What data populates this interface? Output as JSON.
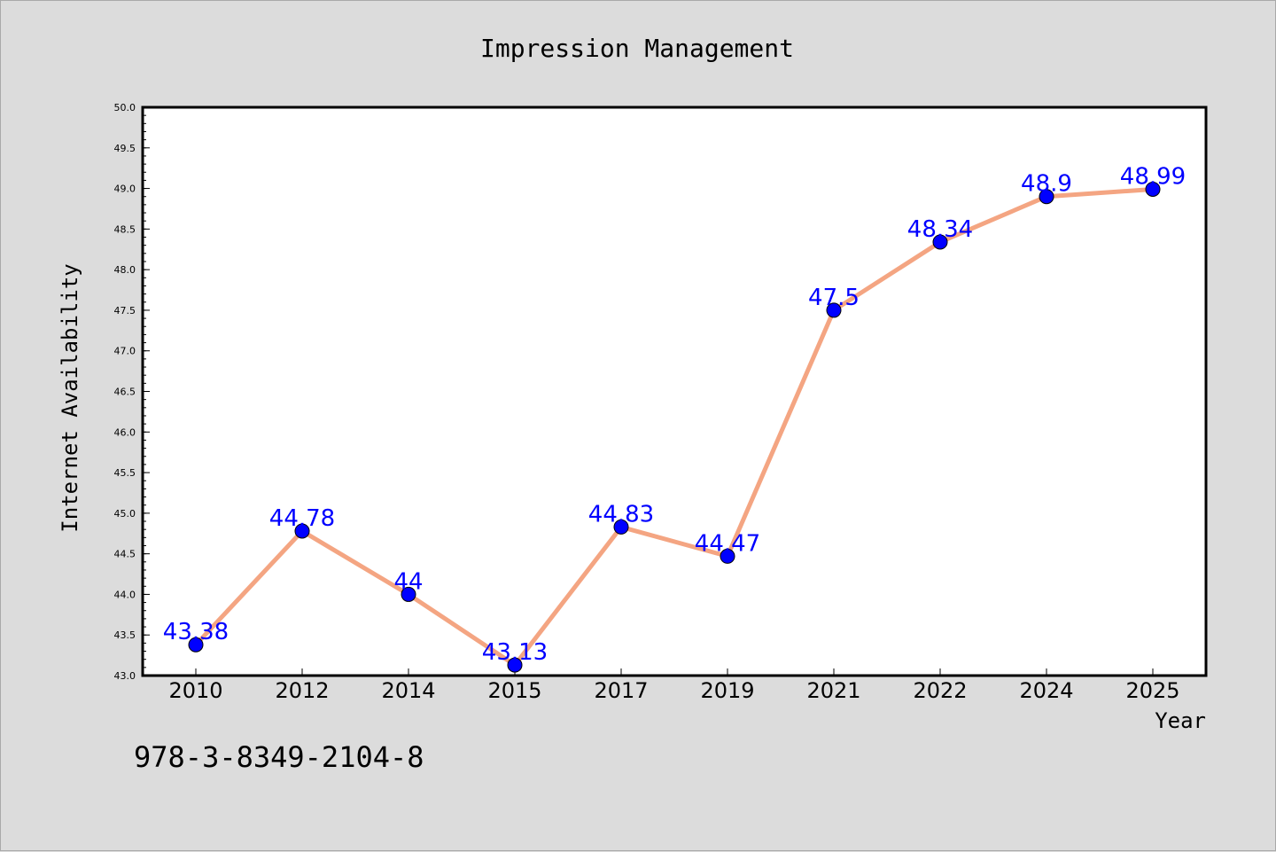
{
  "footer": {
    "isbn": "978-3-8349-2104-8"
  },
  "colors": {
    "background": "#dcdcdc",
    "plot_area": "#ffffff",
    "line": "#f4a582",
    "marker": "#0000ff",
    "data_label": "#0000ff"
  },
  "chart_data": {
    "type": "line",
    "title": "Impression Management",
    "xlabel": "Year",
    "ylabel": "Internet Availability",
    "categories": [
      "2010",
      "2012",
      "2014",
      "2015",
      "2017",
      "2019",
      "2021",
      "2022",
      "2024",
      "2025"
    ],
    "series": [
      {
        "values": [
          43.38,
          44.78,
          44,
          43.13,
          44.83,
          44.47,
          47.5,
          48.34,
          48.9,
          48.99
        ]
      }
    ],
    "data_labels": [
      "43.38",
      "44.78",
      "44",
      "43.13",
      "44.83",
      "44.47",
      "47.5",
      "48.34",
      "48.9",
      "48.99"
    ],
    "ylim": [
      43.0,
      50.0
    ],
    "yticks": [
      "43.0",
      "43.5",
      "44.0",
      "44.5",
      "45.0",
      "45.5",
      "46.0",
      "46.5",
      "47.0",
      "47.5",
      "48.0",
      "48.5",
      "49.0",
      "49.5",
      "50.0"
    ],
    "grid": false,
    "legend": "none"
  }
}
